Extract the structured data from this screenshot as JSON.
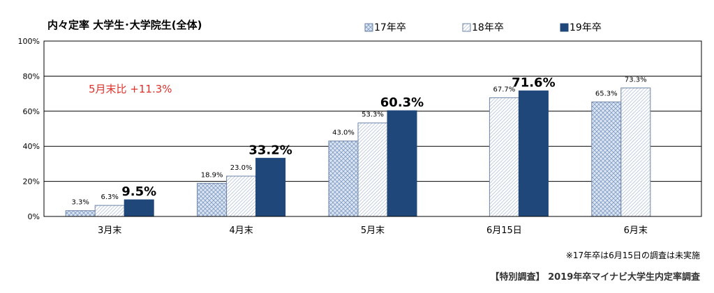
{
  "chart_data": {
    "type": "bar",
    "title": "内々定率 大学生･大学院生(全体)",
    "categories": [
      "3月末",
      "4月末",
      "5月末",
      "6月15日",
      "6月末"
    ],
    "series": [
      {
        "name": "17年卒",
        "values": [
          3.3,
          18.9,
          43.0,
          null,
          65.3
        ],
        "labels": [
          "3.3%",
          "18.9%",
          "43.0%",
          "",
          "65.3%"
        ]
      },
      {
        "name": "18年卒",
        "values": [
          6.3,
          23.0,
          53.3,
          67.7,
          73.3
        ],
        "labels": [
          "6.3%",
          "23.0%",
          "53.3%",
          "67.7%",
          "73.3%"
        ]
      },
      {
        "name": "19年卒",
        "values": [
          9.5,
          33.2,
          60.3,
          71.6,
          null
        ],
        "labels": [
          "9.5%",
          "33.2%",
          "60.3%",
          "71.6%",
          ""
        ]
      }
    ],
    "y_ticks": [
      "0%",
      "20%",
      "40%",
      "60%",
      "80%",
      "100%"
    ],
    "ylim": [
      0,
      100
    ],
    "grid": true,
    "legend_position": "top-right",
    "annotation": "5月末比 +11.3%",
    "note": "※17年卒は6月15日の調査は未実施",
    "source": "【特別調査】 2019年卒マイナビ大学生内定率調査",
    "colors": {
      "s17": "#c9d7ea",
      "s18": "#ffffff",
      "s19": "#1f477a",
      "grid": "#000000",
      "annotation": "#e0302a"
    }
  }
}
